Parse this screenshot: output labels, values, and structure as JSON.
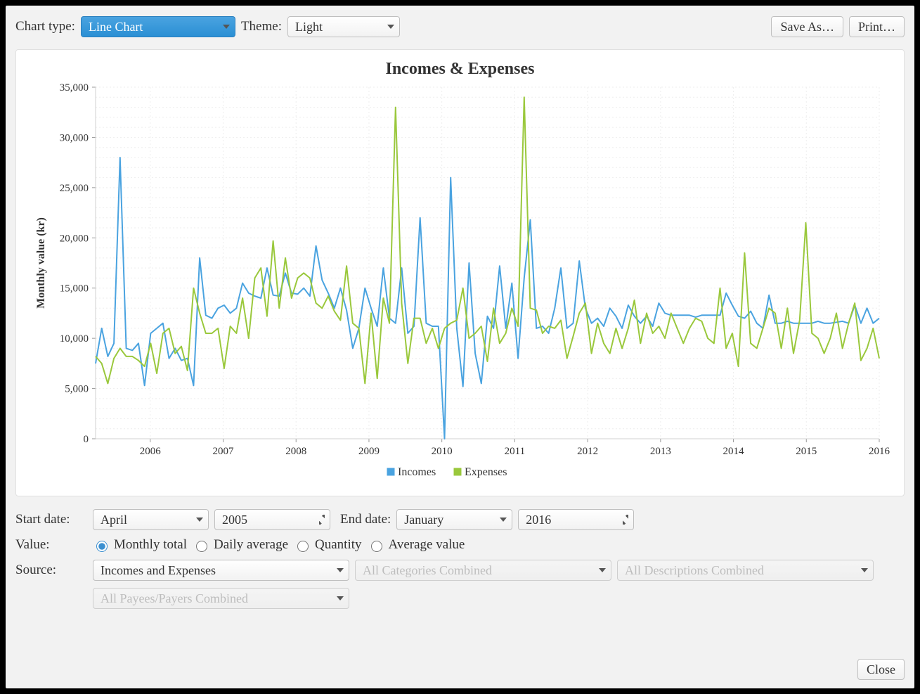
{
  "toolbar": {
    "chart_type_label": "Chart type:",
    "chart_type_value": "Line Chart",
    "theme_label": "Theme:",
    "theme_value": "Light",
    "save_as_label": "Save As…",
    "print_label": "Print…"
  },
  "chart": {
    "type": "line",
    "title": "Incomes & Expenses",
    "title_fontsize": 24,
    "ylabel": "Monthly value (kr)",
    "label_fontsize": 16,
    "background_color": "#ffffff",
    "plot_background": "#ffffff",
    "grid_color": "#eeeeee",
    "grid_dash": "2,3",
    "axis_color": "#d0d0d0",
    "tick_font_size": 15,
    "x_domain_start": 2005.25,
    "x_domain_end": 2016.0,
    "x_ticks": [
      2006,
      2007,
      2008,
      2009,
      2010,
      2011,
      2012,
      2013,
      2014,
      2015,
      2016
    ],
    "x_tick_labels": [
      "2006",
      "2007",
      "2008",
      "2009",
      "2010",
      "2011",
      "2012",
      "2013",
      "2014",
      "2015",
      "2016"
    ],
    "y_domain_min": 0,
    "y_domain_max": 35000,
    "y_ticks": [
      0,
      5000,
      10000,
      15000,
      20000,
      25000,
      30000,
      35000
    ],
    "y_tick_labels": [
      "0",
      "5,000",
      "10,000",
      "15,000",
      "20,000",
      "25,000",
      "30,000",
      "35,000"
    ],
    "line_width": 2,
    "legend": {
      "marker_size": 10,
      "items": [
        {
          "label": "Incomes",
          "color": "#4aa3e0"
        },
        {
          "label": "Expenses",
          "color": "#9ac83c"
        }
      ]
    },
    "series": [
      {
        "name": "Incomes",
        "color": "#4aa3e0",
        "values": [
          7500,
          11000,
          8200,
          9500,
          28000,
          9000,
          8800,
          9500,
          5300,
          10500,
          11000,
          11500,
          8000,
          9000,
          7800,
          8000,
          5300,
          18000,
          12300,
          12000,
          13000,
          13300,
          12500,
          13000,
          15500,
          14500,
          14200,
          14000,
          17000,
          14300,
          14200,
          16500,
          14500,
          14400,
          15000,
          14200,
          19200,
          15800,
          14500,
          13000,
          15000,
          12800,
          9000,
          11000,
          15000,
          13000,
          11200,
          17000,
          12000,
          11500,
          17000,
          10500,
          11200,
          22000,
          11500,
          11200,
          11200,
          0,
          26000,
          11000,
          5200,
          17500,
          8500,
          5500,
          12200,
          11000,
          17200,
          11000,
          15500,
          8000,
          16000,
          21800,
          11000,
          11200,
          10500,
          13000,
          17000,
          11000,
          11500,
          17700,
          13000,
          11500,
          12000,
          11200,
          13000,
          12200,
          11000,
          13300,
          12200,
          11500,
          12200,
          11200,
          13500,
          12500,
          12300,
          12300,
          12300,
          12300,
          12100,
          12300,
          12300,
          12300,
          12300,
          14500,
          13300,
          12200,
          12000,
          12700,
          11500,
          11000,
          14300,
          11500,
          11500,
          11700,
          11500,
          11500,
          11500,
          11500,
          11700,
          11500,
          11500,
          11600,
          11700,
          11500,
          13300,
          11500,
          13000,
          11500,
          12000
        ]
      },
      {
        "name": "Expenses",
        "color": "#9ac83c",
        "values": [
          8200,
          7500,
          5500,
          8000,
          9000,
          8200,
          8200,
          7800,
          7200,
          9500,
          6500,
          10500,
          11000,
          8500,
          9200,
          6800,
          15000,
          12500,
          10500,
          10500,
          11000,
          7000,
          11200,
          10500,
          14000,
          10000,
          16000,
          17000,
          12200,
          19700,
          13000,
          18000,
          14000,
          16000,
          16500,
          16000,
          13500,
          13000,
          14200,
          12700,
          11800,
          17200,
          11500,
          11000,
          5500,
          12500,
          6000,
          14000,
          11500,
          33000,
          13500,
          7500,
          12000,
          12000,
          9500,
          11000,
          9000,
          11000,
          11500,
          11800,
          15000,
          10000,
          10500,
          11200,
          7700,
          13000,
          9500,
          10500,
          13000,
          11200,
          34000,
          13000,
          12800,
          10500,
          11200,
          11000,
          11800,
          8000,
          10200,
          12500,
          13500,
          8500,
          11500,
          9500,
          8500,
          11000,
          9000,
          11000,
          13800,
          9500,
          12500,
          10500,
          11200,
          10000,
          12500,
          11000,
          9500,
          11000,
          12000,
          11700,
          10000,
          9500,
          15000,
          9000,
          10500,
          7200,
          18500,
          9500,
          9000,
          11000,
          13000,
          12500,
          9000,
          13000,
          8500,
          11800,
          21500,
          10500,
          10000,
          8500,
          10000,
          12500,
          9000,
          11500,
          13500,
          7800,
          9000,
          11000,
          8000
        ]
      }
    ]
  },
  "controls": {
    "start_date_label": "Start date:",
    "start_month": "April",
    "start_year": "2005",
    "end_date_label": "End date:",
    "end_month": "January",
    "end_year": "2016",
    "value_label": "Value:",
    "value_options": [
      {
        "label": "Monthly total",
        "checked": true
      },
      {
        "label": "Daily average",
        "checked": false
      },
      {
        "label": "Quantity",
        "checked": false
      },
      {
        "label": "Average value",
        "checked": false
      }
    ],
    "source_label": "Source:",
    "source_value": "Incomes and Expenses",
    "categories_value": "All Categories Combined",
    "descriptions_value": "All Descriptions Combined",
    "payees_value": "All Payees/Payers Combined"
  },
  "footer": {
    "close_label": "Close"
  }
}
